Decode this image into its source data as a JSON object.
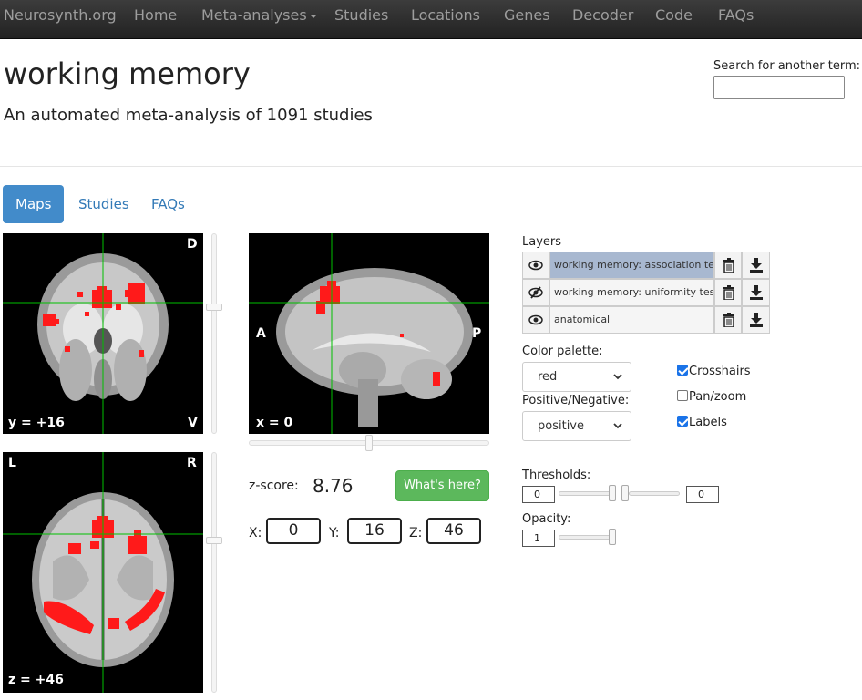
{
  "nav": {
    "brand": "Neurosynth.org",
    "items": [
      "Home",
      "Meta-analyses",
      "Studies",
      "Locations",
      "Genes",
      "Decoder",
      "Code",
      "FAQs"
    ]
  },
  "header": {
    "title": "working memory",
    "subtitle": "An automated meta-analysis of 1091 studies",
    "search_label": "Search for another term:",
    "search_value": ""
  },
  "tabs": [
    "Maps",
    "Studies",
    "FAQs"
  ],
  "views": {
    "coronal": {
      "top": "D",
      "bottom_left": "y = +16",
      "bottom_right": "V"
    },
    "sagittal": {
      "left": "A",
      "right": "P",
      "bottom_left": "x = 0"
    },
    "axial": {
      "top_left": "L",
      "top_right": "R",
      "bottom_left": "z = +46"
    }
  },
  "zscore": {
    "label": "z-score:",
    "value": "8.76",
    "button": "What's here?"
  },
  "coords": {
    "x_label": "X:",
    "x": "0",
    "y_label": "Y:",
    "y": "16",
    "z_label": "Z:",
    "z": "46"
  },
  "layers": {
    "title": "Layers",
    "items": [
      {
        "name": "working memory: association test",
        "selected": true,
        "visible": true
      },
      {
        "name": "working memory: uniformity test",
        "selected": false,
        "visible": false
      },
      {
        "name": "anatomical",
        "selected": false,
        "visible": true
      }
    ]
  },
  "palette": {
    "label": "Color palette:",
    "value": "red"
  },
  "posneg": {
    "label": "Positive/Negative:",
    "value": "positive"
  },
  "options": {
    "crosshairs": "Crosshairs",
    "crosshairs_on": true,
    "panzoom": "Pan/zoom",
    "panzoom_on": false,
    "labels": "Labels",
    "labels_on": true
  },
  "thresholds": {
    "label": "Thresholds:",
    "min": "0",
    "max": "0"
  },
  "opacity": {
    "label": "Opacity:",
    "value": "1"
  },
  "colors": {
    "navbar": "#222222",
    "tab_active": "#428bca",
    "link": "#337ab7",
    "button_green": "#5cb85c",
    "activation": "#ff1a1a",
    "crosshair": "#00c000"
  }
}
